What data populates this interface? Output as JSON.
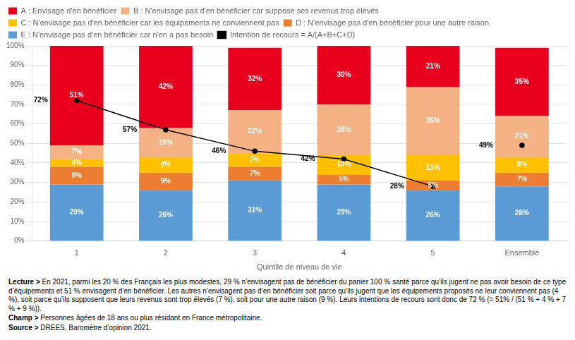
{
  "chart_data": {
    "type": "bar",
    "stacked": true,
    "categories": [
      "1",
      "2",
      "3",
      "4",
      "5",
      "Ensemble"
    ],
    "xlabel": "Quintile de niveau de vie",
    "series": [
      {
        "name": "A : Envisage d'en bénéficier",
        "type": "bar",
        "color": "#e8001c",
        "values": [
          51,
          42,
          32,
          30,
          21,
          35
        ],
        "value_labels": [
          "51%",
          "42%",
          "32%",
          "30%",
          "21%",
          "35%"
        ]
      },
      {
        "name": "B : N'envisage pas d'en bénéficier car suppose ses revenus trop élevés",
        "type": "bar",
        "color": "#f4b183",
        "values": [
          7,
          15,
          22,
          26,
          35,
          21
        ],
        "value_labels": [
          "7%",
          "15%",
          "22%",
          "26%",
          "35%",
          "21%"
        ]
      },
      {
        "name": "C : N'envisage pas d'en bénéficier car les équipements ne conviennent pas",
        "type": "bar",
        "color": "#ffc000",
        "values": [
          4,
          8,
          7,
          10,
          13,
          8
        ],
        "value_labels": [
          "4%",
          "8%",
          "7%",
          "10%",
          "13%",
          "8%"
        ]
      },
      {
        "name": "D : N'envisage pas d'en bénéficier pour une autre raison",
        "type": "bar",
        "color": "#ed7d31",
        "values": [
          9,
          9,
          7,
          5,
          5,
          7
        ],
        "value_labels": [
          "9%",
          "9%",
          "7%",
          "5%",
          "5%",
          "7%"
        ]
      },
      {
        "name": "E : N'envisage pas d'en bénéficier car n'en a pas besoin",
        "type": "bar",
        "color": "#5b9bd5",
        "values": [
          29,
          26,
          31,
          29,
          26,
          28
        ],
        "value_labels": [
          "29%",
          "26%",
          "31%",
          "29%",
          "26%",
          "28%"
        ]
      },
      {
        "name": "Intention de recours = A/(A+B+C+D)",
        "type": "line",
        "color": "#000000",
        "marker": "circle",
        "line_style": "solid",
        "values": [
          72,
          57,
          46,
          42,
          28,
          49
        ],
        "value_labels": [
          "72%",
          "57%",
          "46%",
          "42%",
          "28%",
          "49%"
        ]
      }
    ],
    "data_labels": true,
    "ylim": [
      0,
      100
    ],
    "yticks": [
      {
        "value": 0,
        "label": "0%"
      },
      {
        "value": 10,
        "label": "10%"
      },
      {
        "value": 20,
        "label": "20%"
      },
      {
        "value": 30,
        "label": "30%"
      },
      {
        "value": 40,
        "label": "40%"
      },
      {
        "value": 50,
        "label": "50%"
      },
      {
        "value": 60,
        "label": "60%"
      },
      {
        "value": 70,
        "label": "70%"
      },
      {
        "value": 80,
        "label": "80%"
      },
      {
        "value": 90,
        "label": "90%"
      },
      {
        "value": 100,
        "label": "100%"
      }
    ],
    "grid": true,
    "legend": "top",
    "annotations": [
      {
        "label": "Lecture > ",
        "text": "En 2021, parmi les 20 % des Français les plus modestes, 29 % n’envisagent pas de bénéficier du panier 100 % santé parce qu’ils jugent ne pas avoir besoin de ce type d’équipements et 51 % envisagent d’en bénéficier. Les autres n’envisagent pas d’en bénéficier soit parce qu’ils jugent que les équipements proposés ne leur conviennent pas (4 %), soit parce qu’ils supposent que leurs revenus sont trop élevés (7 %), soit pour une autre raison (9 %). Leurs intentions de recours sont donc de 72 % (= 51% / (51 % + 4 % + 7 % + 9 %))."
      },
      {
        "label": "Champ > ",
        "text": "Personnes âgées de 18 ans ou plus résidant en France métropolitaine."
      },
      {
        "label": "Source > ",
        "text": "DREES, Baromètre d’opinion 2021."
      }
    ]
  }
}
